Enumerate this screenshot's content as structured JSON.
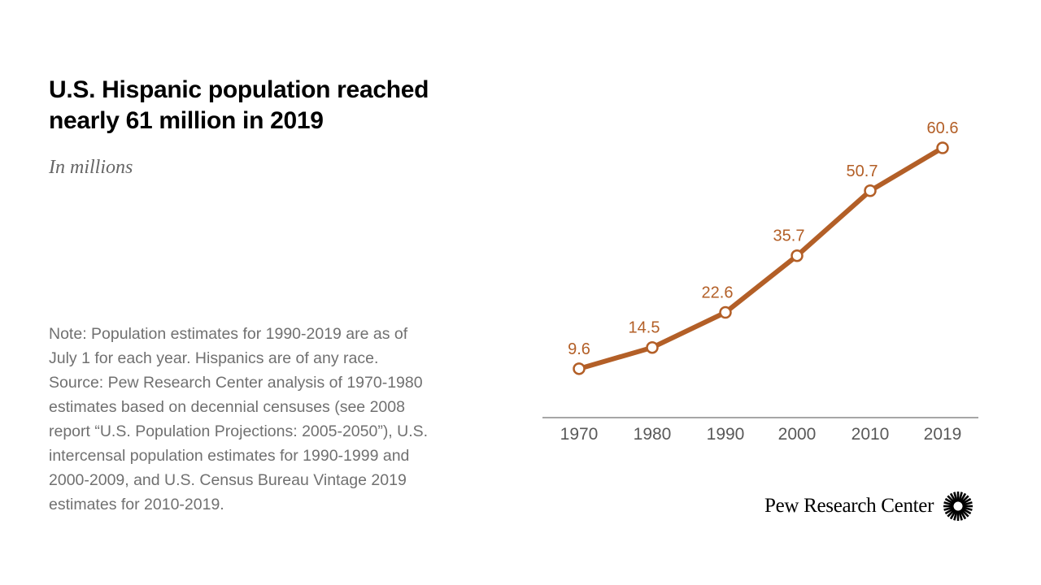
{
  "title_lines": [
    "U.S. Hispanic population reached",
    "nearly 61 million in 2019"
  ],
  "subtitle": "In millions",
  "notes": [
    "Note: Population estimates for 1990-2019 are as of",
    "July 1 for each year. Hispanics are of any race.",
    "Source: Pew Research Center analysis of 1970-1980",
    "estimates based on decennial censuses (see 2008",
    "report “U.S. Population Projections: 2005-2050”), U.S.",
    "intercensal population estimates for 1990-1999 and",
    "2000-2009, and U.S. Census Bureau Vintage 2019",
    "estimates for 2010-2019."
  ],
  "brand": {
    "name": "Pew Research Center",
    "logo_icon": "sunburst-logo-icon"
  },
  "colors": {
    "line": "#b35f27",
    "label": "#b35f27",
    "axis": "#707070",
    "tick_text": "#595959"
  },
  "chart_data": {
    "type": "line",
    "title": "U.S. Hispanic population reached nearly 61 million in 2019",
    "subtitle": "In millions",
    "xlabel": "",
    "ylabel": "",
    "categories": [
      "1970",
      "1980",
      "1990",
      "2000",
      "2010",
      "2019"
    ],
    "x": [
      1970,
      1980,
      1990,
      2000,
      2010,
      2019
    ],
    "values": [
      9.6,
      14.5,
      22.6,
      35.7,
      50.7,
      60.6
    ],
    "data_labels": [
      "9.6",
      "14.5",
      "22.6",
      "35.7",
      "50.7",
      "60.6"
    ],
    "ylim": [
      0,
      65
    ],
    "grid": false,
    "legend": "none"
  }
}
